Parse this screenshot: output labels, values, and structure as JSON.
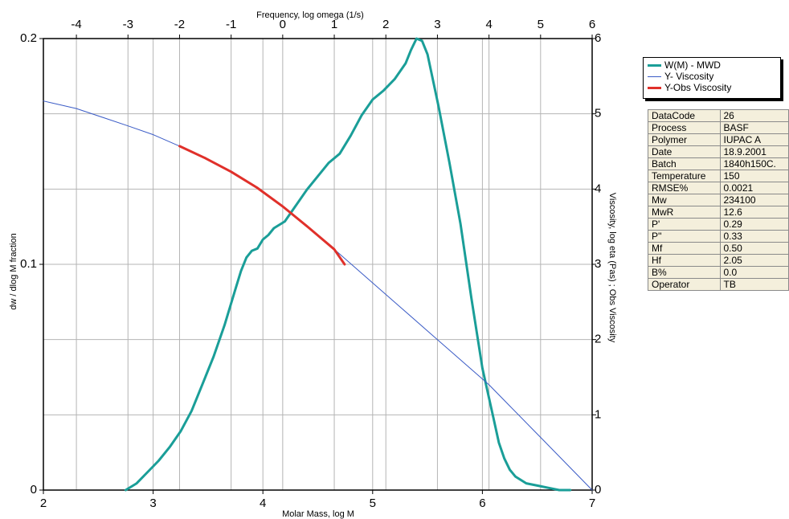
{
  "chart_data": {
    "type": "line",
    "axes": {
      "bottom": {
        "label": "Molar Mass, log M",
        "range": [
          2,
          7
        ],
        "ticks": [
          2,
          3,
          4,
          5,
          6,
          7
        ]
      },
      "left": {
        "label": "dw / dlog M  fraction",
        "range": [
          0,
          0.2
        ],
        "ticks": [
          0,
          0.1,
          0.2
        ],
        "tick_labels": [
          "0",
          "0.1",
          "0.2"
        ]
      },
      "top": {
        "label": "Frequency, log omega (1/s)",
        "range": [
          -4.64,
          6
        ],
        "ticks": [
          -4,
          -3,
          -2,
          -1,
          0,
          1,
          2,
          3,
          4,
          5,
          6
        ]
      },
      "right": {
        "label": "Viscosity, log eta (Pas) ; Obs Viscosity",
        "range": [
          0,
          6
        ],
        "ticks": [
          0,
          1,
          2,
          3,
          4,
          5,
          6
        ]
      }
    },
    "grid": true,
    "legend_position": "top-right, outside plot",
    "series": [
      {
        "name": "W(M) - MWD",
        "color": "#1a9e98",
        "x_axis": "bottom",
        "y_axis": "left",
        "x": [
          2.75,
          2.85,
          2.95,
          3.05,
          3.15,
          3.25,
          3.35,
          3.45,
          3.55,
          3.65,
          3.7,
          3.75,
          3.8,
          3.85,
          3.9,
          3.95,
          4.0,
          4.05,
          4.1,
          4.2,
          4.3,
          4.4,
          4.5,
          4.6,
          4.7,
          4.8,
          4.9,
          5.0,
          5.05,
          5.1,
          5.2,
          5.3,
          5.35,
          5.4,
          5.45,
          5.5,
          5.6,
          5.7,
          5.8,
          5.9,
          6.0,
          6.1,
          6.15,
          6.2,
          6.25,
          6.3,
          6.4,
          6.5,
          6.6,
          6.7,
          6.8
        ],
        "y": [
          0.0,
          0.003,
          0.008,
          0.013,
          0.019,
          0.026,
          0.035,
          0.047,
          0.059,
          0.073,
          0.081,
          0.089,
          0.097,
          0.103,
          0.106,
          0.107,
          0.111,
          0.113,
          0.116,
          0.119,
          0.126,
          0.133,
          0.139,
          0.145,
          0.149,
          0.157,
          0.166,
          0.173,
          0.175,
          0.177,
          0.182,
          0.189,
          0.195,
          0.2,
          0.199,
          0.193,
          0.17,
          0.145,
          0.118,
          0.085,
          0.054,
          0.032,
          0.021,
          0.014,
          0.009,
          0.006,
          0.003,
          0.002,
          0.001,
          0.0,
          0.0
        ]
      },
      {
        "name": "Y- Viscosity",
        "color": "#3a5bc6",
        "x_axis": "top",
        "y_axis": "right",
        "x": [
          -4.64,
          -4.0,
          -3.0,
          -2.5,
          -2.0,
          -1.5,
          -1.0,
          -0.5,
          0.0,
          0.5,
          1.0,
          1.5,
          2.0,
          3.0,
          4.0,
          5.0,
          6.0
        ],
        "y": [
          5.17,
          5.07,
          4.84,
          4.72,
          4.57,
          4.41,
          4.23,
          4.02,
          3.77,
          3.49,
          3.2,
          2.9,
          2.6,
          2.0,
          1.4,
          0.7,
          0.0
        ]
      },
      {
        "name": "Y-Obs Viscosity",
        "color": "#e0302a",
        "x_axis": "top",
        "y_axis": "right",
        "x": [
          -2.0,
          -1.5,
          -1.0,
          -0.5,
          0.0,
          0.5,
          1.0,
          1.2
        ],
        "y": [
          4.57,
          4.41,
          4.23,
          4.02,
          3.77,
          3.49,
          3.2,
          3.0
        ]
      }
    ]
  },
  "legend": {
    "items": [
      {
        "label": "W(M) - MWD",
        "color": "#1a9e98"
      },
      {
        "label": "Y- Viscosity",
        "color": "#3a5bc6"
      },
      {
        "label": "Y-Obs Viscosity",
        "color": "#e0302a"
      }
    ]
  },
  "info_table": {
    "rows": [
      {
        "key": "DataCode",
        "value": "26"
      },
      {
        "key": "Process",
        "value": "BASF"
      },
      {
        "key": "Polymer",
        "value": "IUPAC A"
      },
      {
        "key": "Date",
        "value": "18.9.2001"
      },
      {
        "key": "Batch",
        "value": "1840h150C."
      },
      {
        "key": "Temperature",
        "value": "150"
      },
      {
        "key": "RMSE%",
        "value": "0.0021"
      },
      {
        "key": "Mw",
        "value": "234100"
      },
      {
        "key": "MwR",
        "value": "12.6"
      },
      {
        "key": "P'",
        "value": "0.29"
      },
      {
        "key": "P''",
        "value": "0.33"
      },
      {
        "key": "Mf",
        "value": "0.50"
      },
      {
        "key": "Hf",
        "value": "2.05"
      },
      {
        "key": "B%",
        "value": "0.0"
      },
      {
        "key": "Operator",
        "value": "TB"
      }
    ]
  }
}
